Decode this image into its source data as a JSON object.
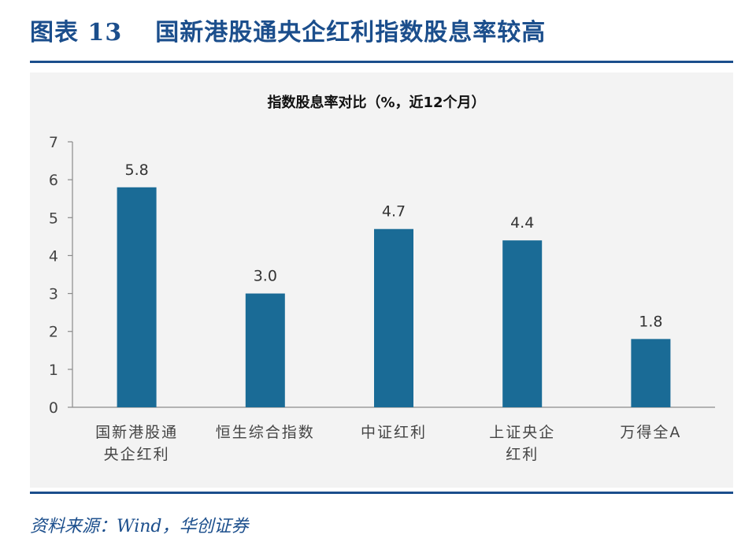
{
  "header": {
    "figure_label": "图表 13",
    "figure_title": "国新港股通央企红利指数股息率较高"
  },
  "source": "资料来源：Wind，华创证券",
  "colors": {
    "accent": "#1b4e8c",
    "bar": "#1a6b96",
    "panel": "#f3f3f3"
  },
  "chart_data": {
    "type": "bar",
    "title": "指数股息率对比（%，近12个月）",
    "categories": [
      [
        "国新港股通",
        "央企红利"
      ],
      [
        "恒生综合指数"
      ],
      [
        "中证红利"
      ],
      [
        "上证央企",
        "红利"
      ],
      [
        "万得全A"
      ]
    ],
    "values": [
      5.8,
      3.0,
      4.7,
      4.4,
      1.8
    ],
    "data_labels": [
      "5.8",
      "3.0",
      "4.7",
      "4.4",
      "1.8"
    ],
    "ylim": [
      0,
      7
    ],
    "yticks": [
      0,
      1,
      2,
      3,
      4,
      5,
      6,
      7
    ],
    "grid": false,
    "legend": false
  }
}
